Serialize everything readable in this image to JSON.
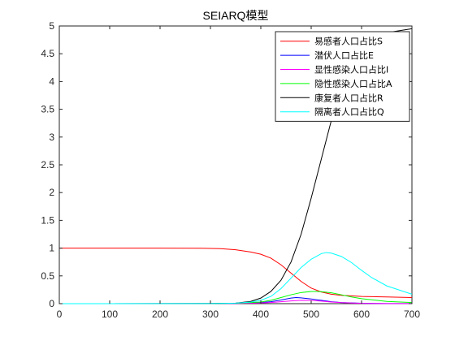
{
  "chart_data": {
    "type": "line",
    "title": "SEIARQ模型",
    "xlabel": "",
    "ylabel": "",
    "xlim": [
      0,
      700
    ],
    "ylim": [
      0,
      5
    ],
    "xticks": [
      0,
      100,
      200,
      300,
      400,
      500,
      600,
      700
    ],
    "yticks": [
      0,
      0.5,
      1,
      1.5,
      2,
      2.5,
      3,
      3.5,
      4,
      4.5,
      5
    ],
    "grid": false,
    "legend_position": "top-right",
    "series": [
      {
        "name": "易感者人口占比S",
        "color": "#ff0000",
        "x": [
          0,
          100,
          200,
          280,
          320,
          350,
          380,
          400,
          420,
          440,
          460,
          480,
          500,
          520,
          540,
          560,
          580,
          600,
          650,
          700
        ],
        "y": [
          1,
          1,
          1,
          0.998,
          0.99,
          0.97,
          0.93,
          0.89,
          0.82,
          0.7,
          0.55,
          0.4,
          0.28,
          0.21,
          0.17,
          0.15,
          0.14,
          0.13,
          0.12,
          0.11
        ]
      },
      {
        "name": "潜伏人口占比E",
        "color": "#0000ff",
        "x": [
          0,
          300,
          350,
          380,
          400,
          420,
          440,
          460,
          470,
          480,
          500,
          520,
          540,
          560,
          600,
          650,
          700
        ],
        "y": [
          0,
          0.002,
          0.006,
          0.012,
          0.02,
          0.035,
          0.065,
          0.1,
          0.11,
          0.105,
          0.085,
          0.06,
          0.035,
          0.02,
          0.007,
          0.002,
          0.001
        ]
      },
      {
        "name": "显性感染人口占比I",
        "color": "#ff00ff",
        "x": [
          0,
          300,
          350,
          400,
          420,
          440,
          460,
          480,
          500,
          520,
          540,
          560,
          600,
          650,
          700
        ],
        "y": [
          0,
          0.001,
          0.004,
          0.012,
          0.02,
          0.035,
          0.05,
          0.06,
          0.058,
          0.045,
          0.03,
          0.018,
          0.006,
          0.002,
          0.001
        ]
      },
      {
        "name": "隐性感染人口占比A",
        "color": "#00ff00",
        "x": [
          0,
          300,
          350,
          400,
          420,
          440,
          460,
          480,
          500,
          510,
          520,
          540,
          560,
          580,
          600,
          650,
          700
        ],
        "y": [
          0,
          0.002,
          0.008,
          0.03,
          0.06,
          0.11,
          0.16,
          0.2,
          0.22,
          0.22,
          0.215,
          0.195,
          0.16,
          0.12,
          0.09,
          0.04,
          0.02
        ]
      },
      {
        "name": "康复者人口占比R",
        "color": "#000000",
        "x": [
          0,
          300,
          350,
          380,
          400,
          420,
          440,
          460,
          480,
          500,
          520,
          540,
          560,
          580,
          600,
          650,
          700
        ],
        "y": [
          0,
          0.001,
          0.01,
          0.04,
          0.1,
          0.22,
          0.42,
          0.75,
          1.25,
          1.9,
          2.6,
          3.3,
          3.95,
          4.45,
          4.75,
          4.88,
          4.95
        ]
      },
      {
        "name": "隔离者人口占比Q",
        "color": "#00ffff",
        "x": [
          0,
          300,
          350,
          380,
          400,
          420,
          440,
          460,
          480,
          500,
          520,
          530,
          540,
          560,
          580,
          600,
          620,
          650,
          700
        ],
        "y": [
          0,
          0.001,
          0.01,
          0.03,
          0.06,
          0.13,
          0.27,
          0.46,
          0.65,
          0.8,
          0.9,
          0.92,
          0.91,
          0.85,
          0.74,
          0.6,
          0.47,
          0.32,
          0.17
        ]
      }
    ]
  }
}
